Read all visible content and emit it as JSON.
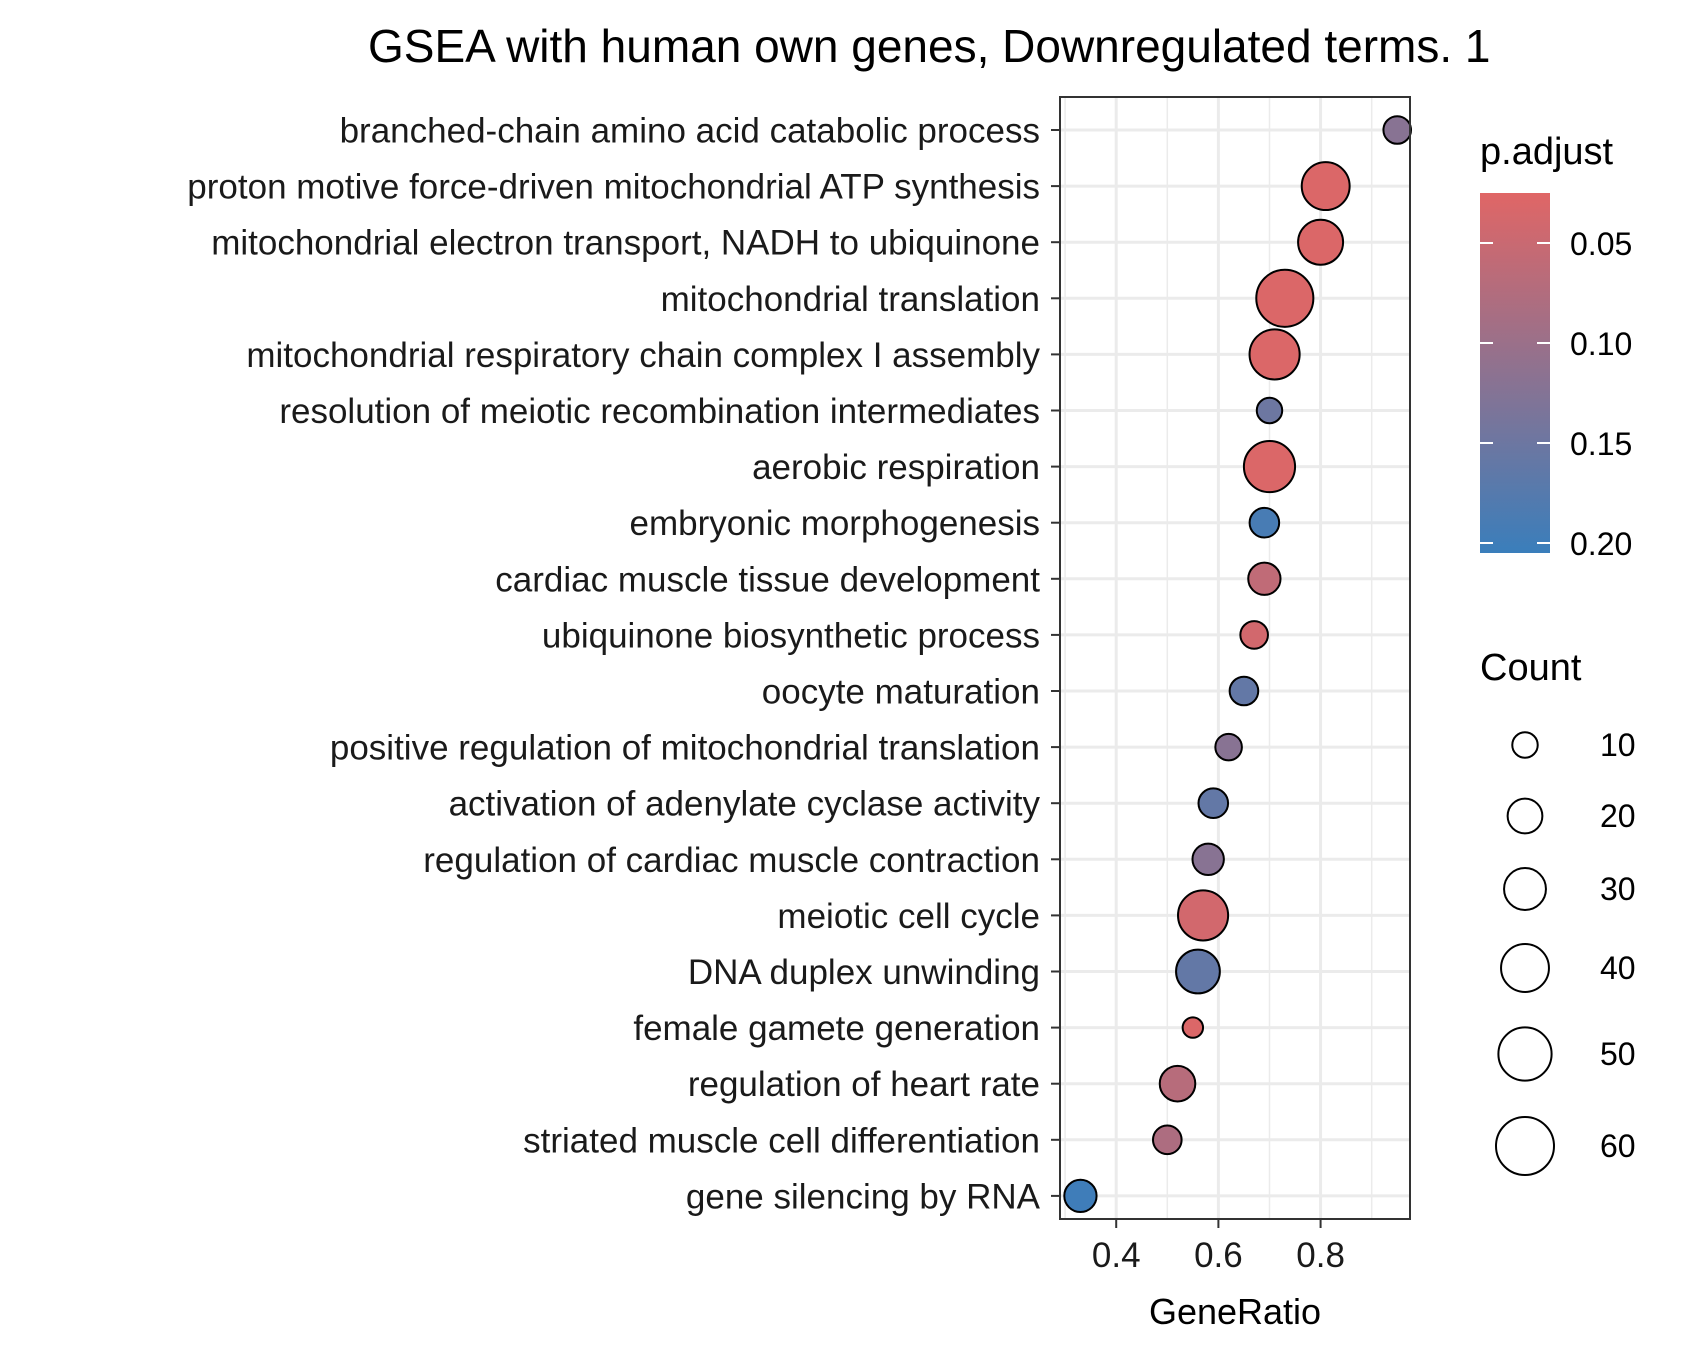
{
  "chart_data": {
    "type": "scatter",
    "title": "GSEA with human own genes, Downregulated terms. 1",
    "xlabel": "GeneRatio",
    "ylabel": "",
    "xlim": [
      0.29,
      0.975
    ],
    "x_ticks": [
      0.4,
      0.6,
      0.8
    ],
    "x_tick_labels": [
      "0.4",
      "0.6",
      "0.8"
    ],
    "grid": true,
    "categories": [
      "branched-chain amino acid catabolic process",
      "proton motive force-driven mitochondrial ATP synthesis",
      "mitochondrial electron transport, NADH to ubiquinone",
      "mitochondrial translation",
      "mitochondrial respiratory chain complex I assembly",
      "resolution of meiotic recombination intermediates",
      "aerobic respiration",
      "embryonic morphogenesis",
      "cardiac muscle tissue development",
      "ubiquinone biosynthetic process",
      "oocyte maturation",
      "positive regulation of mitochondrial translation",
      "activation of adenylate cyclase activity",
      "regulation of cardiac muscle contraction",
      "meiotic cell cycle",
      "DNA duplex unwinding",
      "female gamete generation",
      "regulation of heart rate",
      "striated muscle cell differentiation",
      "gene silencing by RNA"
    ],
    "points": [
      {
        "term": "branched-chain amino acid catabolic process",
        "gene_ratio": 0.95,
        "count": 12,
        "p_adjust": 0.12
      },
      {
        "term": "proton motive force-driven mitochondrial ATP synthesis",
        "gene_ratio": 0.81,
        "count": 40,
        "p_adjust": 0.03
      },
      {
        "term": "mitochondrial electron transport, NADH to ubiquinone",
        "gene_ratio": 0.8,
        "count": 35,
        "p_adjust": 0.03
      },
      {
        "term": "mitochondrial translation",
        "gene_ratio": 0.73,
        "count": 58,
        "p_adjust": 0.03
      },
      {
        "term": "mitochondrial respiratory chain complex I assembly",
        "gene_ratio": 0.71,
        "count": 44,
        "p_adjust": 0.03
      },
      {
        "term": "resolution of meiotic recombination intermediates",
        "gene_ratio": 0.7,
        "count": 10,
        "p_adjust": 0.15
      },
      {
        "term": "aerobic respiration",
        "gene_ratio": 0.7,
        "count": 46,
        "p_adjust": 0.03
      },
      {
        "term": "embryonic morphogenesis",
        "gene_ratio": 0.69,
        "count": 14,
        "p_adjust": 0.19
      },
      {
        "term": "cardiac muscle tissue development",
        "gene_ratio": 0.69,
        "count": 17,
        "p_adjust": 0.06
      },
      {
        "term": "ubiquinone biosynthetic process",
        "gene_ratio": 0.67,
        "count": 12,
        "p_adjust": 0.04
      },
      {
        "term": "oocyte maturation",
        "gene_ratio": 0.65,
        "count": 13,
        "p_adjust": 0.16
      },
      {
        "term": "positive regulation of mitochondrial translation",
        "gene_ratio": 0.62,
        "count": 11,
        "p_adjust": 0.12
      },
      {
        "term": "activation of adenylate cyclase activity",
        "gene_ratio": 0.59,
        "count": 14,
        "p_adjust": 0.16
      },
      {
        "term": "regulation of cardiac muscle contraction",
        "gene_ratio": 0.58,
        "count": 16,
        "p_adjust": 0.12
      },
      {
        "term": "meiotic cell cycle",
        "gene_ratio": 0.57,
        "count": 44,
        "p_adjust": 0.04
      },
      {
        "term": "DNA duplex unwinding",
        "gene_ratio": 0.56,
        "count": 33,
        "p_adjust": 0.16
      },
      {
        "term": "female gamete generation",
        "gene_ratio": 0.55,
        "count": 6,
        "p_adjust": 0.03
      },
      {
        "term": "regulation of heart rate",
        "gene_ratio": 0.52,
        "count": 21,
        "p_adjust": 0.07
      },
      {
        "term": "striated muscle cell differentiation",
        "gene_ratio": 0.5,
        "count": 13,
        "p_adjust": 0.08
      },
      {
        "term": "gene silencing by RNA",
        "gene_ratio": 0.33,
        "count": 17,
        "p_adjust": 0.2
      }
    ],
    "color_legend": {
      "title": "p.adjust",
      "ticks": [
        0.05,
        0.1,
        0.15,
        0.2
      ],
      "tick_labels": [
        "0.05",
        "0.10",
        "0.15",
        "0.20"
      ],
      "range": [
        0.025,
        0.205
      ],
      "low_color": "#E06666",
      "high_color": "#3A7EBB"
    },
    "size_legend": {
      "title": "Count",
      "values": [
        10,
        20,
        30,
        40,
        50,
        60
      ],
      "labels": [
        "10",
        "20",
        "30",
        "40",
        "50",
        "60"
      ]
    },
    "legend_placement": "right"
  }
}
